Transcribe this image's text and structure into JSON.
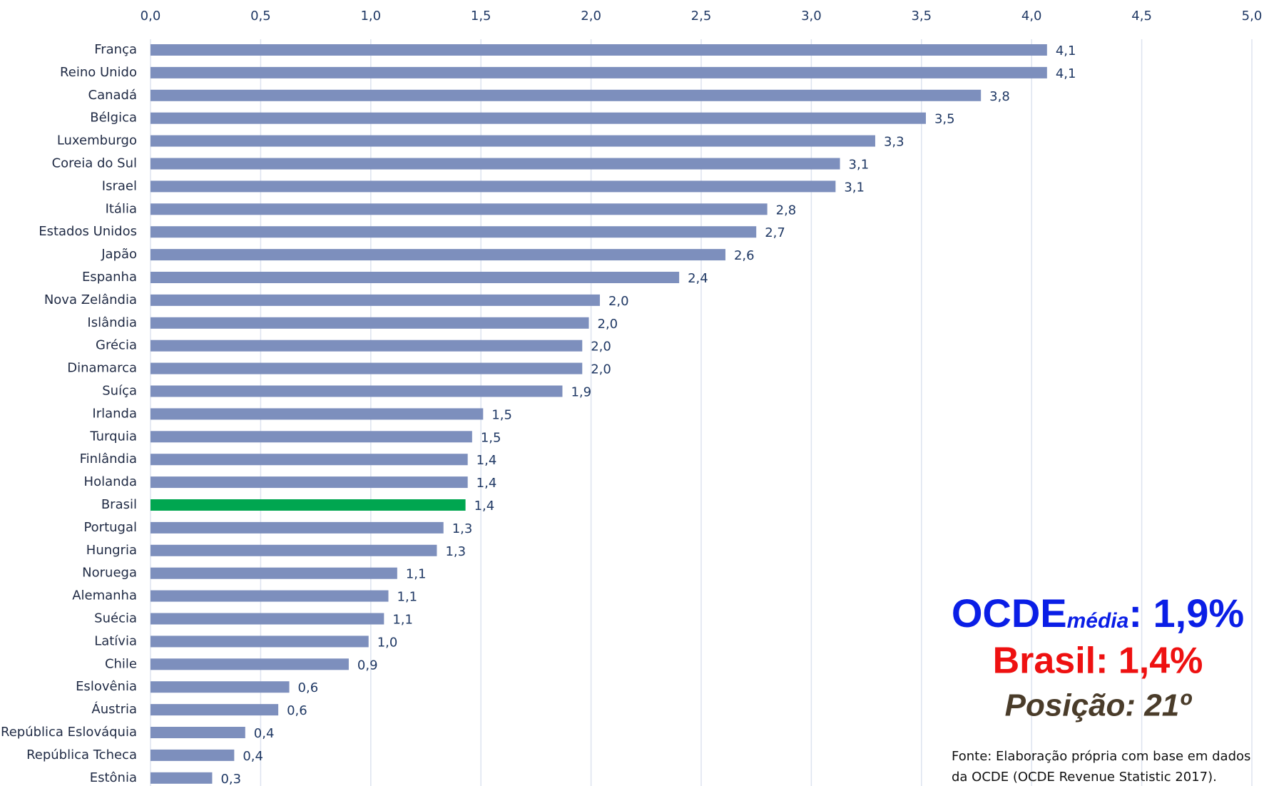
{
  "chart_data": {
    "type": "bar",
    "orientation": "horizontal",
    "categories": [
      "França",
      "Reino Unido",
      "Canadá",
      "Bélgica",
      "Luxemburgo",
      "Coreia do Sul",
      "Israel",
      "Itália",
      "Estados Unidos",
      "Japão",
      "Espanha",
      "Nova Zelândia",
      "Islândia",
      "Grécia",
      "Dinamarca",
      "Suíça",
      "Irlanda",
      "Turquia",
      "Finlândia",
      "Holanda",
      "Brasil",
      "Portugal",
      "Hungria",
      "Noruega",
      "Alemanha",
      "Suécia",
      "Latívia",
      "Chile",
      "Eslovênia",
      "Áustria",
      "República Eslováquia",
      "República Tcheca",
      "Estônia"
    ],
    "values": [
      4.07,
      4.07,
      3.77,
      3.52,
      3.29,
      3.13,
      3.11,
      2.8,
      2.75,
      2.61,
      2.4,
      2.04,
      1.99,
      1.96,
      1.96,
      1.87,
      1.51,
      1.46,
      1.44,
      1.44,
      1.43,
      1.33,
      1.3,
      1.12,
      1.08,
      1.06,
      0.99,
      0.9,
      0.63,
      0.58,
      0.43,
      0.38,
      0.28
    ],
    "value_labels": [
      "4,1",
      "4,1",
      "3,8",
      "3,5",
      "3,3",
      "3,1",
      "3,1",
      "2,8",
      "2,7",
      "2,6",
      "2,4",
      "2,0",
      "2,0",
      "2,0",
      "2,0",
      "1,9",
      "1,5",
      "1,5",
      "1,4",
      "1,4",
      "1,4",
      "1,3",
      "1,3",
      "1,1",
      "1,1",
      "1,1",
      "1,0",
      "0,9",
      "0,6",
      "0,6",
      "0,4",
      "0,4",
      "0,3"
    ],
    "colors": [
      "#7d8fbd",
      "#7d8fbd",
      "#7d8fbd",
      "#7d8fbd",
      "#7d8fbd",
      "#7d8fbd",
      "#7d8fbd",
      "#7d8fbd",
      "#7d8fbd",
      "#7d8fbd",
      "#7d8fbd",
      "#7d8fbd",
      "#7d8fbd",
      "#7d8fbd",
      "#7d8fbd",
      "#7d8fbd",
      "#7d8fbd",
      "#7d8fbd",
      "#7d8fbd",
      "#7d8fbd",
      "#00a650",
      "#7d8fbd",
      "#7d8fbd",
      "#7d8fbd",
      "#7d8fbd",
      "#7d8fbd",
      "#7d8fbd",
      "#7d8fbd",
      "#7d8fbd",
      "#7d8fbd",
      "#7d8fbd",
      "#7d8fbd",
      "#7d8fbd"
    ],
    "xlim": [
      0,
      5
    ],
    "xticks": [
      {
        "value": 0,
        "label": "0,0"
      },
      {
        "value": 0.5,
        "label": "0,5"
      },
      {
        "value": 1,
        "label": "1,0"
      },
      {
        "value": 1.5,
        "label": "1,5"
      },
      {
        "value": 2,
        "label": "2,0"
      },
      {
        "value": 2.5,
        "label": "2,5"
      },
      {
        "value": 3,
        "label": "3,0"
      },
      {
        "value": 3.5,
        "label": "3,5"
      },
      {
        "value": 4,
        "label": "4,0"
      },
      {
        "value": 4.5,
        "label": "4,5"
      },
      {
        "value": 5,
        "label": "5,0"
      }
    ],
    "grid": true,
    "annotations": {
      "ocde": "OCDE",
      "media": "média",
      "ocde_value": ": 1,9%",
      "brasil": "Brasil: 1,4%",
      "posicao": "Posição: 21º",
      "source": [
        "Fonte:  Elaboração própria com base em dados",
        "da OCDE (OCDE Revenue Statistic 2017)."
      ]
    }
  }
}
